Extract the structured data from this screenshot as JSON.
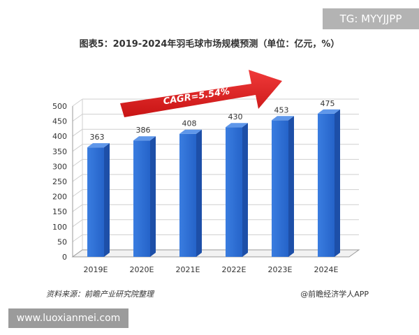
{
  "watermark_top": "TG: MYYJJPP",
  "watermark_bottom": "www.luoxianmei.com",
  "source": "资料来源：前瞻产业研究院整理",
  "publisher": "@前瞻经济学人APP",
  "colors": {
    "bar_front": "#2e6fd6",
    "bar_side": "#1d4fa8",
    "bar_top": "#5f97ea",
    "arrow": "#e31b1b"
  },
  "chart_data": {
    "type": "bar",
    "title": "图表5：2019-2024年羽毛球市场规模预测（单位：亿元，%）",
    "categories": [
      "2019E",
      "2020E",
      "2021E",
      "2022E",
      "2023E",
      "2024E"
    ],
    "values": [
      363,
      386,
      408,
      430,
      453,
      475
    ],
    "data_labels": [
      "363",
      "386",
      "408",
      "430",
      "453",
      "475"
    ],
    "ylim": [
      0,
      500
    ],
    "yticks": [
      "0",
      "50",
      "100",
      "150",
      "200",
      "250",
      "300",
      "350",
      "400",
      "450",
      "500"
    ],
    "annotation": "CAGR=5.54%",
    "grid": true,
    "legend": "none"
  }
}
